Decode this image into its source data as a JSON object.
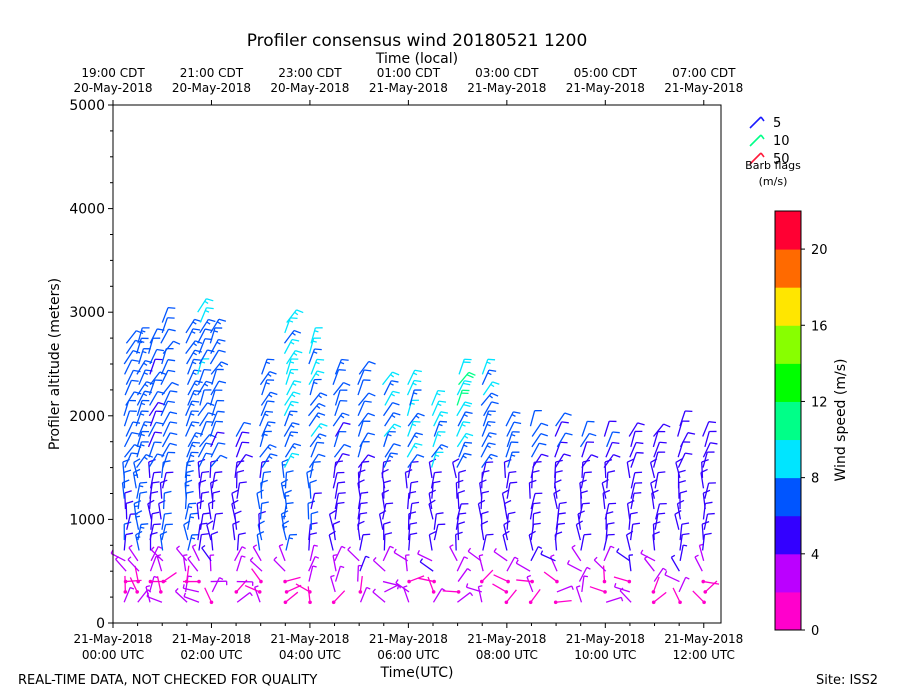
{
  "chart_data": {
    "type": "wind-barb time-height",
    "title": "Profiler consensus wind 20180521 1200",
    "xlabel_bottom": "Time(UTC)",
    "xlabel_top": "Time (local)",
    "ylabel": "Profiler altitude (meters)",
    "ylim": [
      0,
      5000
    ],
    "y_ticks": [
      "0",
      "1000",
      "2000",
      "3000",
      "4000",
      "5000"
    ],
    "x_range_hours_utc": [
      0,
      12.35
    ],
    "bottom_ticks": [
      {
        "hour": 0,
        "line1": "21-May-2018",
        "line2": "00:00 UTC"
      },
      {
        "hour": 2,
        "line1": "21-May-2018",
        "line2": "02:00 UTC"
      },
      {
        "hour": 4,
        "line1": "21-May-2018",
        "line2": "04:00 UTC"
      },
      {
        "hour": 6,
        "line1": "21-May-2018",
        "line2": "06:00 UTC"
      },
      {
        "hour": 8,
        "line1": "21-May-2018",
        "line2": "08:00 UTC"
      },
      {
        "hour": 10,
        "line1": "21-May-2018",
        "line2": "10:00 UTC"
      },
      {
        "hour": 12,
        "line1": "21-May-2018",
        "line2": "12:00 UTC"
      }
    ],
    "top_ticks": [
      {
        "hour": 0,
        "line1": "19:00 CDT",
        "line2": "20-May-2018"
      },
      {
        "hour": 2,
        "line1": "21:00 CDT",
        "line2": "20-May-2018"
      },
      {
        "hour": 4,
        "line1": "23:00 CDT",
        "line2": "20-May-2018"
      },
      {
        "hour": 6,
        "line1": "01:00 CDT",
        "line2": "21-May-2018"
      },
      {
        "hour": 8,
        "line1": "03:00 CDT",
        "line2": "21-May-2018"
      },
      {
        "hour": 10,
        "line1": "05:00 CDT",
        "line2": "21-May-2018"
      },
      {
        "hour": 12,
        "line1": "07:00 CDT",
        "line2": "21-May-2018"
      }
    ],
    "barb_legend": {
      "entries": [
        {
          "label": "5",
          "color": "#1a1aff"
        },
        {
          "label": "10",
          "color": "#00ff88"
        },
        {
          "label": "50",
          "color": "#ff1a3a"
        }
      ],
      "title_line1": "Barb flags",
      "title_line2": "(m/s)"
    },
    "colorbar": {
      "label": "Wind speed (m/s)",
      "range": [
        0,
        22
      ],
      "ticks": [
        "0",
        "4",
        "8",
        "12",
        "16",
        "20"
      ],
      "colors": [
        "#ff00cc",
        "#bb00ff",
        "#3300ff",
        "#0055ff",
        "#00e5ff",
        "#00ff88",
        "#00ff00",
        "#88ff00",
        "#ffe600",
        "#ff6a00",
        "#ff0033"
      ]
    },
    "profiles": [
      {
        "hour": 0.25,
        "top": 2700,
        "low_speed": 3,
        "mid_speed": 6,
        "high_speed": 6
      },
      {
        "hour": 0.5,
        "top": 2700,
        "low_speed": 3,
        "mid_speed": 7,
        "high_speed": 8
      },
      {
        "hour": 0.75,
        "top": 2700,
        "low_speed": 3,
        "mid_speed": 5,
        "high_speed": 7
      },
      {
        "hour": 1.0,
        "top": 2900,
        "low_speed": 3,
        "mid_speed": 6,
        "high_speed": 7
      },
      {
        "hour": 1.5,
        "top": 2800,
        "low_speed": 3,
        "mid_speed": 7,
        "high_speed": 8
      },
      {
        "hour": 1.75,
        "top": 3000,
        "low_speed": 3,
        "mid_speed": 5,
        "high_speed": 9
      },
      {
        "hour": 2.0,
        "top": 2800,
        "low_speed": 3,
        "mid_speed": 5,
        "high_speed": 8
      },
      {
        "hour": 2.5,
        "top": 1800,
        "low_speed": 3,
        "mid_speed": 5,
        "high_speed": 7
      },
      {
        "hour": 3.0,
        "top": 2400,
        "low_speed": 3,
        "mid_speed": 6,
        "high_speed": 8
      },
      {
        "hour": 3.5,
        "top": 2900,
        "low_speed": 3,
        "mid_speed": 7,
        "high_speed": 9
      },
      {
        "hour": 4.0,
        "top": 2700,
        "low_speed": 3,
        "mid_speed": 6,
        "high_speed": 9
      },
      {
        "hour": 4.5,
        "top": 2450,
        "low_speed": 3,
        "mid_speed": 5,
        "high_speed": 8
      },
      {
        "hour": 5.0,
        "top": 2450,
        "low_speed": 3,
        "mid_speed": 5,
        "high_speed": 8
      },
      {
        "hour": 5.5,
        "top": 2350,
        "low_speed": 3,
        "mid_speed": 5,
        "high_speed": 10
      },
      {
        "hour": 6.0,
        "top": 2350,
        "low_speed": 3,
        "mid_speed": 5,
        "high_speed": 11
      },
      {
        "hour": 6.5,
        "top": 2150,
        "low_speed": 3,
        "mid_speed": 5,
        "high_speed": 11
      },
      {
        "hour": 7.0,
        "top": 2450,
        "low_speed": 3,
        "mid_speed": 5,
        "high_speed": 13
      },
      {
        "hour": 7.5,
        "top": 2400,
        "low_speed": 3,
        "mid_speed": 5,
        "high_speed": 10
      },
      {
        "hour": 8.0,
        "top": 1950,
        "low_speed": 3,
        "mid_speed": 5,
        "high_speed": 9
      },
      {
        "hour": 8.5,
        "top": 1950,
        "low_speed": 3,
        "mid_speed": 5,
        "high_speed": 8
      },
      {
        "hour": 9.0,
        "top": 1900,
        "low_speed": 3,
        "mid_speed": 5,
        "high_speed": 7
      },
      {
        "hour": 9.5,
        "top": 1850,
        "low_speed": 3,
        "mid_speed": 5,
        "high_speed": 7
      },
      {
        "hour": 10.0,
        "top": 1850,
        "low_speed": 3,
        "mid_speed": 5,
        "high_speed": 7
      },
      {
        "hour": 10.5,
        "top": 1850,
        "low_speed": 3,
        "mid_speed": 5,
        "high_speed": 6
      },
      {
        "hour": 11.0,
        "top": 1850,
        "low_speed": 3,
        "mid_speed": 5,
        "high_speed": 6
      },
      {
        "hour": 11.5,
        "top": 1900,
        "low_speed": 3,
        "mid_speed": 5,
        "high_speed": 6
      },
      {
        "hour": 12.0,
        "top": 1850,
        "low_speed": 3,
        "mid_speed": 5,
        "high_speed": 6
      }
    ]
  },
  "footer": {
    "left": "REAL-TIME DATA, NOT CHECKED FOR QUALITY",
    "right": "Site: ISS2"
  }
}
